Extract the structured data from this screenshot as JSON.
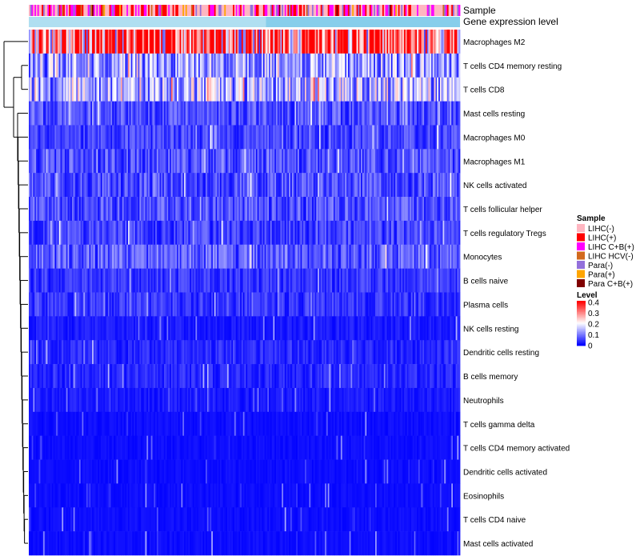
{
  "chart_data": {
    "type": "heatmap",
    "annotation_tracks": [
      {
        "key": "sample",
        "label": "Sample"
      },
      {
        "key": "level",
        "label": "Gene expression level"
      }
    ],
    "rows": [
      {
        "label": "Macrophages M2",
        "mean": 0.33
      },
      {
        "label": "T cells CD4 memory resting",
        "mean": 0.12
      },
      {
        "label": "T cells CD8",
        "mean": 0.14
      },
      {
        "label": "Mast cells resting",
        "mean": 0.06
      },
      {
        "label": "Macrophages M0",
        "mean": 0.05
      },
      {
        "label": "Macrophages M1",
        "mean": 0.06
      },
      {
        "label": "NK cells activated",
        "mean": 0.06
      },
      {
        "label": "T cells follicular helper",
        "mean": 0.06
      },
      {
        "label": "T cells regulatory  Tregs",
        "mean": 0.05
      },
      {
        "label": "Monocytes",
        "mean": 0.07
      },
      {
        "label": "B cells naive",
        "mean": 0.04
      },
      {
        "label": "Plasma cells",
        "mean": 0.04
      },
      {
        "label": "NK cells resting",
        "mean": 0.02
      },
      {
        "label": "Dendritic cells resting",
        "mean": 0.03
      },
      {
        "label": "B cells memory",
        "mean": 0.03
      },
      {
        "label": "Neutrophils",
        "mean": 0.02
      },
      {
        "label": "T cells gamma delta",
        "mean": 0.01
      },
      {
        "label": "T cells CD4 memory activated",
        "mean": 0.01
      },
      {
        "label": "Dendritic cells activated",
        "mean": 0.01
      },
      {
        "label": "Eosinophils",
        "mean": 0.01
      },
      {
        "label": "T cells CD4 naive",
        "mean": 0.01
      },
      {
        "label": "Mast cells activated",
        "mean": 0.01
      }
    ],
    "num_columns": 300,
    "sample_legend": {
      "title": "Sample",
      "items": [
        {
          "label": "LIHC(-)",
          "color": "#ffb6c1"
        },
        {
          "label": "LIHC(+)",
          "color": "#ff0000"
        },
        {
          "label": "LIHC C+B(+)",
          "color": "#ff00ff"
        },
        {
          "label": "LIHC HCV(-)",
          "color": "#d2691e"
        },
        {
          "label": "Para(-)",
          "color": "#9370db"
        },
        {
          "label": "Para(+)",
          "color": "#ffa500"
        },
        {
          "label": "Para C+B(+)",
          "color": "#800000"
        }
      ]
    },
    "level_legend": {
      "title": "Level",
      "ticks": [
        "0.4",
        "0.3",
        "0.2",
        "0.1",
        "0"
      ],
      "range": [
        0,
        0.4
      ],
      "colors": {
        "low": "#0000ff",
        "mid": "#ffffff",
        "high": "#ff0000"
      }
    },
    "level_track_color": "#87ceeb"
  }
}
